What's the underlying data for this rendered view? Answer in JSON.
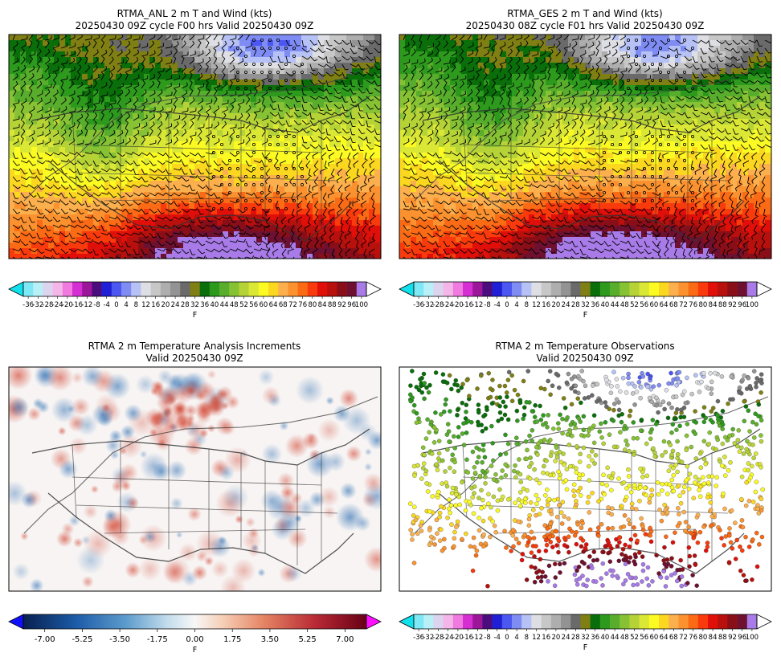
{
  "panels": [
    {
      "id": "anl",
      "title_line1": "RTMA_ANL 2 m T and Wind (kts)",
      "title_line2": "20250430 09Z cycle F00 hrs Valid 20250430 09Z",
      "map_type": "temperature-with-wind-barbs"
    },
    {
      "id": "ges",
      "title_line1": "RTMA_GES 2 m T and Wind (kts)",
      "title_line2": "20250430 08Z cycle F01 hrs Valid 20250430 09Z",
      "map_type": "temperature-with-wind-barbs"
    },
    {
      "id": "inc",
      "title_line1": "RTMA 2 m Temperature Analysis Increments",
      "title_line2": "Valid 20250430 09Z",
      "map_type": "increment-field"
    },
    {
      "id": "obs",
      "title_line1": "RTMA 2 m Temperature Observations",
      "title_line2": "Valid 20250430 09Z",
      "map_type": "station-observations"
    }
  ],
  "temp_colorbar": {
    "unit_label": "F",
    "ticks": [
      "-36",
      "-32",
      "-28",
      "-24",
      "-20",
      "-16",
      "-12",
      "-8",
      "-4",
      "0",
      "4",
      "8",
      "12",
      "16",
      "20",
      "24",
      "28",
      "32",
      "36",
      "40",
      "44",
      "48",
      "52",
      "56",
      "60",
      "64",
      "68",
      "72",
      "76",
      "80",
      "84",
      "88",
      "92",
      "96",
      "100"
    ],
    "colors": [
      "#7ee9f5",
      "#b9eff7",
      "#dcd3ee",
      "#f4b6e8",
      "#f07ae0",
      "#d52fd4",
      "#9c169a",
      "#4b0c7d",
      "#1f1fd6",
      "#4b57f0",
      "#7f8cf4",
      "#b6c1f5",
      "#dedfe4",
      "#c7c7c7",
      "#aeaeae",
      "#939393",
      "#6a6a6a",
      "#7f7f14",
      "#0a6e0a",
      "#2d9a1e",
      "#58ad2c",
      "#86c234",
      "#b5d337",
      "#dbe735",
      "#fbfb23",
      "#fbd81f",
      "#fcb04d",
      "#fb922f",
      "#fb6a15",
      "#f83a0c",
      "#e10f09",
      "#b8100c",
      "#8a0e18",
      "#6e1030",
      "#a87be8"
    ],
    "under_color": "#11e1ec",
    "over_color": "#ffffff"
  },
  "inc_colorbar": {
    "unit_label": "F",
    "ticks": [
      "-7.00",
      "-5.25",
      "-3.50",
      "-1.75",
      "0.00",
      "1.75",
      "3.50",
      "5.25",
      "7.00"
    ],
    "tick_values": [
      -7,
      -5.25,
      -3.5,
      -1.75,
      0,
      1.75,
      3.5,
      5.25,
      7
    ],
    "range": [
      -8,
      8
    ],
    "under_color": "#1010ff",
    "over_color": "#ff10ff"
  }
}
